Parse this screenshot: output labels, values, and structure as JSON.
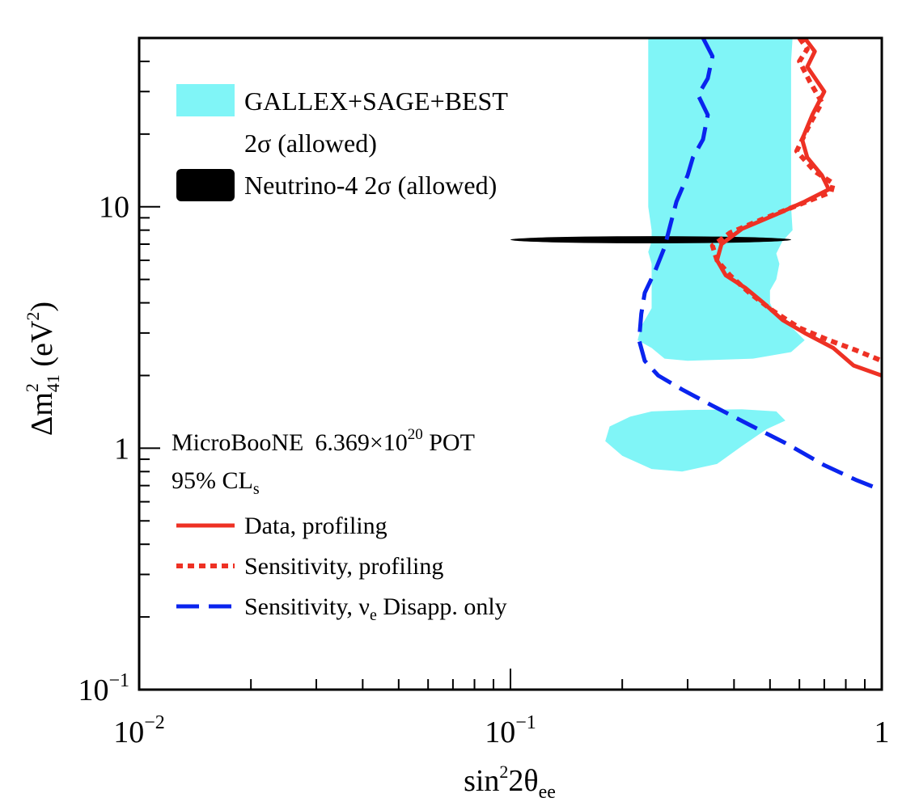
{
  "chart_data": {
    "type": "line",
    "xscale": "log",
    "yscale": "log",
    "xlim": [
      0.01,
      1
    ],
    "ylim": [
      0.1,
      50
    ],
    "xlabel": {
      "base": "sin",
      "sup": "2",
      "mid": "2θ",
      "sub": "ee"
    },
    "ylabel": {
      "base": "Δm",
      "sup": "2",
      "sub": "41",
      "rest": " (eV",
      "sup2": "2",
      "end": ")"
    },
    "x_ticks": [
      {
        "value": 0.01,
        "base": "10",
        "exp": "−2"
      },
      {
        "value": 0.1,
        "base": "10",
        "exp": "−1"
      },
      {
        "value": 1,
        "base": "1",
        "exp": ""
      }
    ],
    "y_ticks": [
      {
        "value": 0.1,
        "base": "10",
        "exp": "−1"
      },
      {
        "value": 1,
        "base": "1",
        "exp": ""
      },
      {
        "value": 10,
        "base": "10",
        "exp": ""
      }
    ],
    "legend_top": [
      {
        "key": "gallex",
        "label": "GALLEX+SAGE+BEST",
        "color": "#80f5f7"
      },
      {
        "key": "gallex_note",
        "label": "2σ (allowed)"
      },
      {
        "key": "n4",
        "label": "Neutrino-4 2σ (allowed)",
        "color": "#000000"
      }
    ],
    "annotation": {
      "experiment": "MicroBooNE",
      "pot_pre": "6.369×10",
      "pot_exp": "20",
      "pot_post": " POT",
      "cl_main": "95% CL",
      "cl_sub": "s"
    },
    "legend_bottom": [
      {
        "key": "data",
        "label": "Data, profiling",
        "color": "#ee3124",
        "style": "solid"
      },
      {
        "key": "sens",
        "label": "Sensitivity, profiling",
        "color": "#ee3124",
        "style": "dotted"
      },
      {
        "key": "disapp",
        "label_pre": "Sensitivity, ν",
        "label_sub": "e",
        "label_post": " Disapp. only",
        "color": "#0a24ee",
        "style": "dashed"
      }
    ],
    "series": [
      {
        "key": "data",
        "name": "Data, profiling",
        "color": "#ee3124",
        "points": [
          [
            0.62,
            50
          ],
          [
            0.66,
            44
          ],
          [
            0.63,
            38
          ],
          [
            0.7,
            30
          ],
          [
            0.65,
            24
          ],
          [
            0.61,
            19
          ],
          [
            0.63,
            16
          ],
          [
            0.69,
            13.5
          ],
          [
            0.72,
            11.8
          ],
          [
            0.62,
            10.5
          ],
          [
            0.52,
            9.3
          ],
          [
            0.42,
            8.1
          ],
          [
            0.37,
            7.0
          ],
          [
            0.36,
            6.0
          ],
          [
            0.38,
            5.2
          ],
          [
            0.43,
            4.6
          ],
          [
            0.48,
            4.0
          ],
          [
            0.54,
            3.4
          ],
          [
            0.62,
            3.0
          ],
          [
            0.74,
            2.6
          ],
          [
            0.84,
            2.2
          ],
          [
            1.0,
            2.0
          ]
        ]
      },
      {
        "key": "sens",
        "name": "Sensitivity, profiling",
        "color": "#ee3124",
        "points": [
          [
            0.6,
            50
          ],
          [
            0.63,
            45
          ],
          [
            0.6,
            40
          ],
          [
            0.64,
            33
          ],
          [
            0.69,
            27
          ],
          [
            0.64,
            22
          ],
          [
            0.59,
            17
          ],
          [
            0.66,
            14
          ],
          [
            0.74,
            12.5
          ],
          [
            0.73,
            11.5
          ],
          [
            0.58,
            10.0
          ],
          [
            0.47,
            8.8
          ],
          [
            0.39,
            7.8
          ],
          [
            0.35,
            6.9
          ],
          [
            0.36,
            6.0
          ],
          [
            0.39,
            5.2
          ],
          [
            0.44,
            4.4
          ],
          [
            0.51,
            3.7
          ],
          [
            0.6,
            3.15
          ],
          [
            0.72,
            2.8
          ],
          [
            0.85,
            2.55
          ],
          [
            1.0,
            2.3
          ]
        ]
      },
      {
        "key": "disapp",
        "name": "Sensitivity, νe Disapp. only",
        "color": "#0a24ee",
        "points": [
          [
            0.33,
            50
          ],
          [
            0.35,
            42
          ],
          [
            0.34,
            34
          ],
          [
            0.32,
            29
          ],
          [
            0.34,
            24
          ],
          [
            0.33,
            19
          ],
          [
            0.31,
            16
          ],
          [
            0.3,
            13.5
          ],
          [
            0.28,
            10.5
          ],
          [
            0.27,
            8.5
          ],
          [
            0.26,
            6.8
          ],
          [
            0.245,
            5.4
          ],
          [
            0.23,
            4.4
          ],
          [
            0.225,
            3.6
          ],
          [
            0.222,
            2.8
          ],
          [
            0.23,
            2.3
          ],
          [
            0.25,
            2.0
          ],
          [
            0.29,
            1.75
          ],
          [
            0.35,
            1.5
          ],
          [
            0.44,
            1.25
          ],
          [
            0.55,
            1.05
          ],
          [
            0.7,
            0.85
          ],
          [
            0.85,
            0.74
          ],
          [
            1.0,
            0.67
          ]
        ]
      }
    ],
    "regions": [
      {
        "key": "gallex",
        "name": "GALLEX+SAGE+BEST 2σ (allowed)",
        "color": "#80f5f7",
        "polygons": [
          [
            [
              0.235,
              50
            ],
            [
              0.575,
              50
            ],
            [
              0.57,
              40
            ],
            [
              0.57,
              10
            ],
            [
              0.575,
              8
            ],
            [
              0.54,
              7.2
            ],
            [
              0.52,
              6.4
            ],
            [
              0.53,
              5.8
            ],
            [
              0.52,
              5.0
            ],
            [
              0.5,
              4.5
            ],
            [
              0.5,
              4.0
            ],
            [
              0.52,
              3.5
            ],
            [
              0.58,
              3.1
            ],
            [
              0.62,
              2.8
            ],
            [
              0.57,
              2.5
            ],
            [
              0.45,
              2.35
            ],
            [
              0.3,
              2.3
            ],
            [
              0.26,
              2.35
            ],
            [
              0.24,
              2.6
            ],
            [
              0.22,
              2.8
            ],
            [
              0.225,
              3.2
            ],
            [
              0.24,
              3.8
            ],
            [
              0.24,
              5.0
            ],
            [
              0.24,
              5.8
            ],
            [
              0.235,
              6.5
            ],
            [
              0.24,
              7.2
            ],
            [
              0.24,
              8.0
            ],
            [
              0.235,
              10
            ],
            [
              0.235,
              20
            ]
          ],
          [
            [
              0.24,
              1.42
            ],
            [
              0.3,
              1.44
            ],
            [
              0.42,
              1.45
            ],
            [
              0.52,
              1.42
            ],
            [
              0.55,
              1.3
            ],
            [
              0.49,
              1.2
            ],
            [
              0.42,
              1.02
            ],
            [
              0.36,
              0.86
            ],
            [
              0.29,
              0.8
            ],
            [
              0.24,
              0.82
            ],
            [
              0.2,
              0.93
            ],
            [
              0.18,
              1.07
            ],
            [
              0.185,
              1.23
            ],
            [
              0.21,
              1.35
            ]
          ]
        ]
      },
      {
        "key": "n4",
        "name": "Neutrino-4 2σ (allowed)",
        "color": "#000000",
        "ellipse": {
          "x_min": 0.1,
          "x_max": 0.57,
          "y_center": 7.3,
          "y_min": 7.05,
          "y_max": 7.55
        }
      }
    ]
  }
}
